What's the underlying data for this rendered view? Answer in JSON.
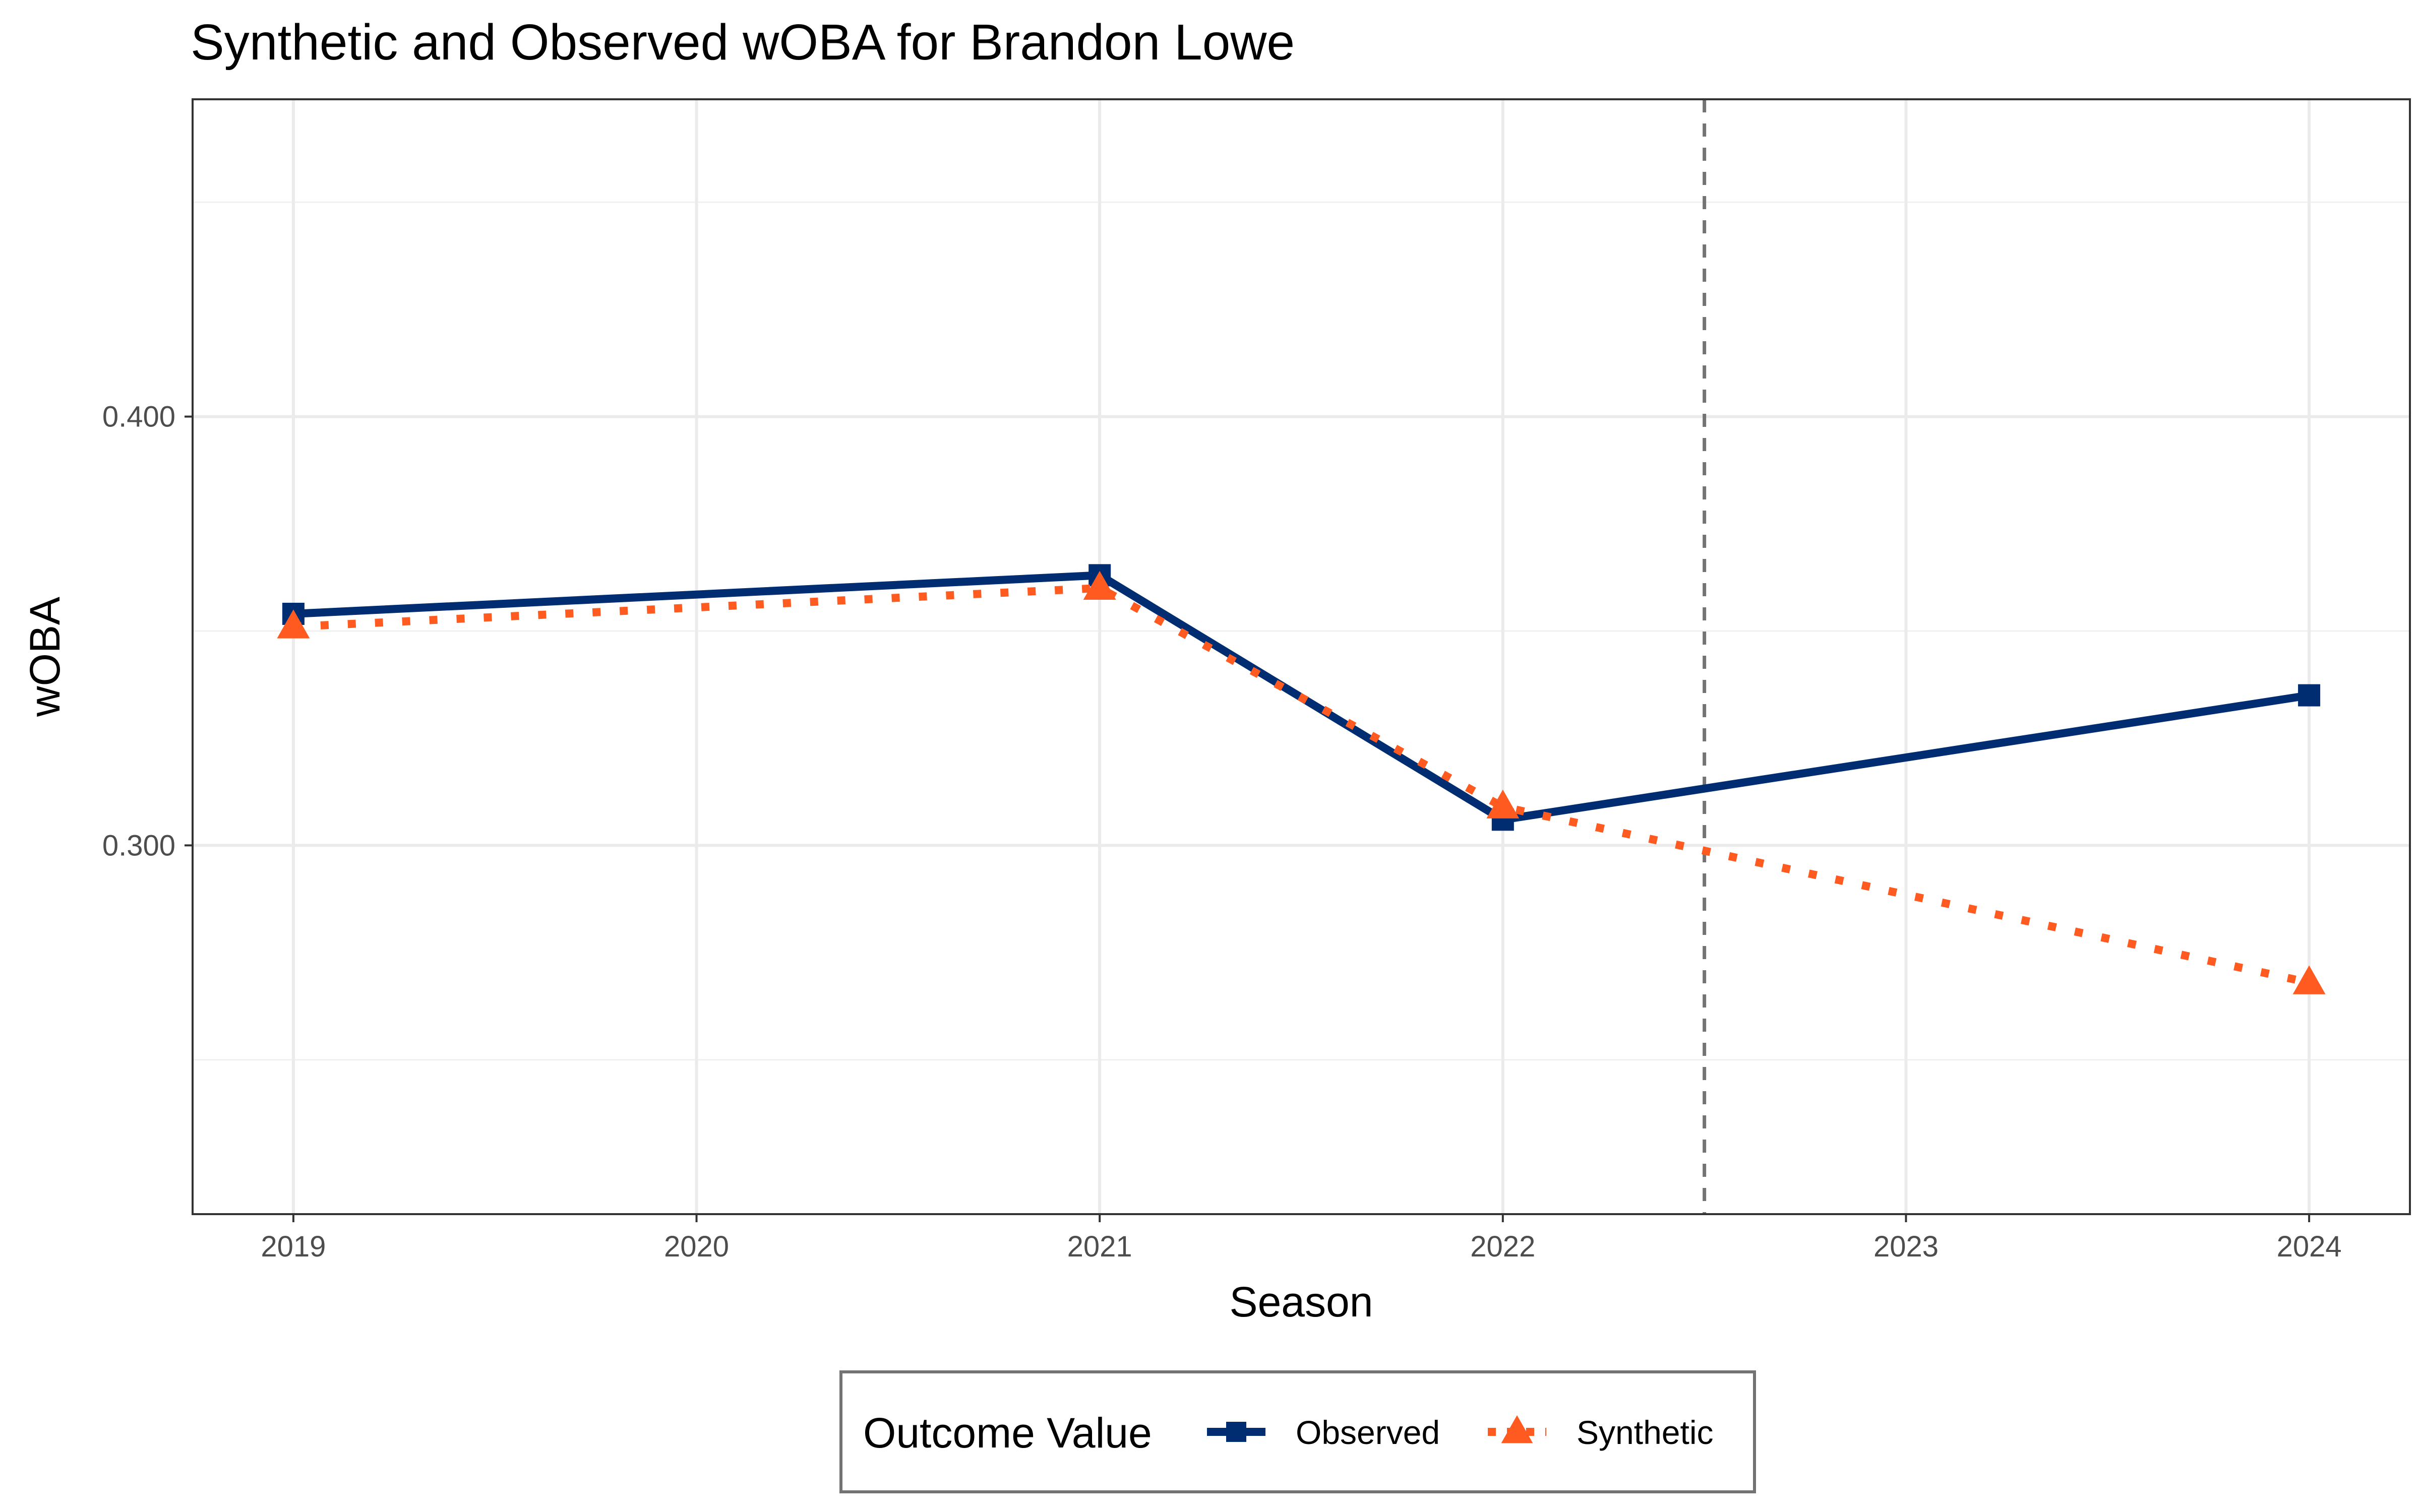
{
  "chart_data": {
    "type": "line",
    "title": "Synthetic and Observed wOBA for Brandon Lowe",
    "xlabel": "Season",
    "ylabel": "wOBA",
    "x": [
      2019,
      2020,
      2021,
      2022,
      2023,
      2024
    ],
    "x_tick_labels": [
      "2019",
      "2020",
      "2021",
      "2022",
      "2023",
      "2024"
    ],
    "xlim": [
      2018.75,
      2024.25
    ],
    "ylim": [
      0.214,
      0.474
    ],
    "y_major_ticks": [
      0.3,
      0.4
    ],
    "y_tick_labels": [
      "0.300",
      "0.400"
    ],
    "y_minor_gridlines": [
      0.25,
      0.35,
      0.45
    ],
    "grid": true,
    "vertical_reference_line": {
      "x": 2022.5,
      "style": "dashed",
      "color": "#737373"
    },
    "series": [
      {
        "name": "Observed",
        "points": [
          [
            2019,
            0.354
          ],
          [
            2021,
            0.363
          ],
          [
            2022,
            0.306
          ],
          [
            2024,
            0.335
          ]
        ],
        "color": "#002d72",
        "line_style": "solid",
        "marker": "square"
      },
      {
        "name": "Synthetic",
        "points": [
          [
            2019,
            0.351
          ],
          [
            2021,
            0.36
          ],
          [
            2022,
            0.309
          ],
          [
            2024,
            0.268
          ]
        ],
        "color": "#ff5a1f",
        "line_style": "dotted",
        "marker": "triangle"
      }
    ],
    "legend": {
      "title": "Outcome Value",
      "placement": "bottom",
      "entries": [
        "Observed",
        "Synthetic"
      ]
    }
  }
}
